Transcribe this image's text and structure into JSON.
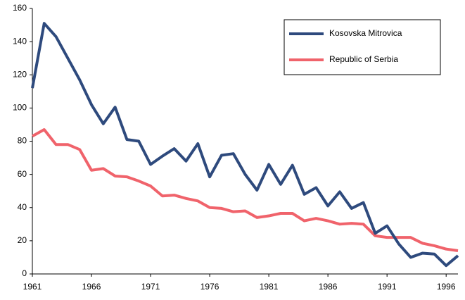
{
  "chart_data": {
    "type": "line",
    "x": [
      1961,
      1962,
      1963,
      1964,
      1965,
      1966,
      1967,
      1968,
      1969,
      1970,
      1971,
      1972,
      1973,
      1974,
      1975,
      1976,
      1977,
      1978,
      1979,
      1980,
      1981,
      1982,
      1983,
      1984,
      1985,
      1986,
      1987,
      1988,
      1989,
      1990,
      1991,
      1992,
      1993,
      1994,
      1995,
      1996,
      1997
    ],
    "series": [
      {
        "name": "Kosovska Mitrovica",
        "color": "#2e4a7d",
        "values": [
          112,
          151,
          143,
          130,
          117,
          102,
          90.5,
          100.5,
          81,
          80,
          66,
          71,
          75.5,
          68,
          78.5,
          58.5,
          71.5,
          72.5,
          60,
          50.5,
          66,
          54,
          65.5,
          48,
          52,
          41,
          49.5,
          39.5,
          43,
          24.5,
          29,
          18,
          10,
          12.5,
          12,
          5,
          11
        ]
      },
      {
        "name": "Republic of Serbia",
        "color": "#f0636b",
        "values": [
          83,
          87,
          78,
          78,
          75,
          62.5,
          63.5,
          59,
          58.5,
          56,
          53,
          47,
          47.5,
          45.5,
          44,
          40,
          39.5,
          37.5,
          38,
          34,
          35,
          36.5,
          36.5,
          32,
          33.5,
          32,
          30,
          30.5,
          30,
          23,
          22,
          22,
          22,
          18.5,
          17,
          15,
          14
        ]
      }
    ],
    "xlim": [
      1961,
      1997
    ],
    "xticks": [
      1961,
      1966,
      1971,
      1976,
      1981,
      1986,
      1991,
      1996
    ],
    "ylim": [
      0,
      160
    ],
    "yticks": [
      0,
      20,
      40,
      60,
      80,
      100,
      120,
      140,
      160
    ],
    "grid": false,
    "legend": "upper right"
  }
}
